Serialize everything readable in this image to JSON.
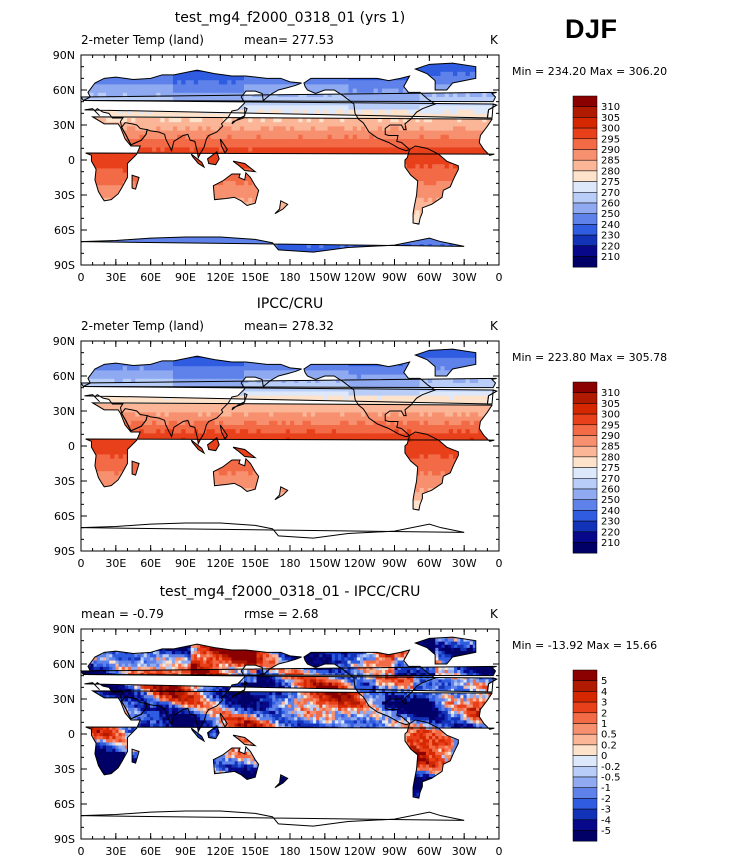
{
  "season_label": "DJF",
  "chart_data": [
    {
      "type": "heatmap",
      "title": "test_mg4_f2000_0318_01 (yrs 1)",
      "left_label": "2-meter Temp (land)",
      "center_label": "mean= 277.53",
      "right_label": "K",
      "stats_label": "Min = 234.20 Max = 306.20",
      "min": 234.2,
      "max": 306.2,
      "mean": 277.53,
      "units": "K",
      "show_antarctica_fill": true,
      "y_ticks": [
        "90N",
        "60N",
        "30N",
        "0",
        "30S",
        "60S",
        "90S"
      ],
      "x_ticks": [
        "0",
        "30E",
        "60E",
        "90E",
        "120E",
        "150E",
        "180",
        "150W",
        "120W",
        "90W",
        "60W",
        "30W",
        "0"
      ],
      "colorbar": {
        "levels": [
          "310",
          "305",
          "300",
          "295",
          "290",
          "285",
          "280",
          "275",
          "270",
          "260",
          "250",
          "240",
          "230",
          "220",
          "210"
        ],
        "colors": [
          "#8b0000",
          "#b01a00",
          "#d62800",
          "#e8401a",
          "#f26a46",
          "#f7906e",
          "#fbb597",
          "#fde2cc",
          "#dde8fb",
          "#b8cdf7",
          "#8faaf0",
          "#5e82ea",
          "#2f5ce0",
          "#1232b8",
          "#08088a",
          "#000066"
        ]
      }
    },
    {
      "type": "heatmap",
      "title": "IPCC/CRU",
      "left_label": "2-meter Temp (land)",
      "center_label": "mean= 278.32",
      "right_label": "K",
      "stats_label": "Min = 223.80 Max = 305.78",
      "min": 223.8,
      "max": 305.78,
      "mean": 278.32,
      "units": "K",
      "show_antarctica_fill": false,
      "y_ticks": [
        "90N",
        "60N",
        "30N",
        "0",
        "30S",
        "60S",
        "90S"
      ],
      "x_ticks": [
        "0",
        "30E",
        "60E",
        "90E",
        "120E",
        "150E",
        "180",
        "150W",
        "120W",
        "90W",
        "60W",
        "30W",
        "0"
      ],
      "colorbar": {
        "levels": [
          "310",
          "305",
          "300",
          "295",
          "290",
          "285",
          "280",
          "275",
          "270",
          "260",
          "250",
          "240",
          "230",
          "220",
          "210"
        ],
        "colors": [
          "#8b0000",
          "#b01a00",
          "#d62800",
          "#e8401a",
          "#f26a46",
          "#f7906e",
          "#fbb597",
          "#fde2cc",
          "#dde8fb",
          "#b8cdf7",
          "#8faaf0",
          "#5e82ea",
          "#2f5ce0",
          "#1232b8",
          "#08088a",
          "#000066"
        ]
      }
    },
    {
      "type": "heatmap",
      "title": "test_mg4_f2000_0318_01 - IPCC/CRU",
      "left_label": "mean =   -0.79",
      "center_label": "rmse =    2.68",
      "right_label": "K",
      "stats_label": "Min = -13.92 Max =  15.66",
      "min": -13.92,
      "max": 15.66,
      "mean": -0.79,
      "rmse": 2.68,
      "units": "K",
      "show_antarctica_fill": false,
      "y_ticks": [
        "90N",
        "60N",
        "30N",
        "0",
        "30S",
        "60S",
        "90S"
      ],
      "x_ticks": [
        "0",
        "30E",
        "60E",
        "90E",
        "120E",
        "150E",
        "180",
        "150W",
        "120W",
        "90W",
        "60W",
        "30W",
        "0"
      ],
      "colorbar": {
        "levels": [
          "5",
          "4",
          "3",
          "2",
          "1",
          "0.5",
          "0.2",
          "0",
          "-0.2",
          "-0.5",
          "-1",
          "-2",
          "-3",
          "-4",
          "-5"
        ],
        "colors": [
          "#8b0000",
          "#b01a00",
          "#d62800",
          "#e8401a",
          "#f26a46",
          "#f7906e",
          "#fbb597",
          "#fde2cc",
          "#dde8fb",
          "#b8cdf7",
          "#8faaf0",
          "#5e82ea",
          "#2f5ce0",
          "#1232b8",
          "#08088a",
          "#000066"
        ]
      }
    }
  ]
}
